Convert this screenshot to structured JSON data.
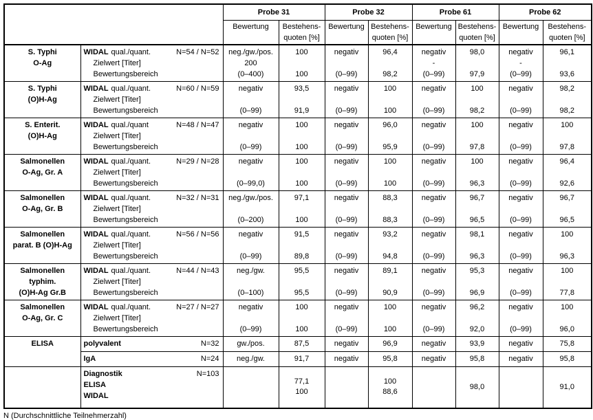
{
  "table": {
    "header": {
      "probes": [
        "Probe 31",
        "Probe 32",
        "Probe 61",
        "Probe 62"
      ],
      "bewertung_label": "Bewertung",
      "quoten_label_line1": "Bestehens-",
      "quoten_label_line2": "quoten [%]"
    },
    "widal_rows": [
      {
        "antigen": [
          "S. Typhi",
          "O-Ag"
        ],
        "test": {
          "bold": "WIDAL",
          "rest": "qual./quant.",
          "n": "N=54 / N=52",
          "line2": "Zielwert [Titer]",
          "line3": "Bewertungsbereich"
        },
        "probes": [
          {
            "bewertung": [
              "neg./gw./pos.",
              "200",
              "(0–400)"
            ],
            "quoten": [
              "100",
              "",
              "100"
            ]
          },
          {
            "bewertung": [
              "negativ",
              "",
              "(0–99)"
            ],
            "quoten": [
              "96,4",
              "",
              "98,2"
            ]
          },
          {
            "bewertung": [
              "negativ",
              "-",
              "(0–99)"
            ],
            "quoten": [
              "98,0",
              "",
              "97,9"
            ]
          },
          {
            "bewertung": [
              "negativ",
              "-",
              "(0–99)"
            ],
            "quoten": [
              "96,1",
              "",
              "93,6"
            ]
          }
        ]
      },
      {
        "antigen": [
          "S. Typhi",
          "(O)H-Ag"
        ],
        "test": {
          "bold": "WIDAL",
          "rest": "qual./quant.",
          "n": "N=60 / N=59",
          "line2": "Zielwert [Titer]",
          "line3": "Bewertungsbereich"
        },
        "probes": [
          {
            "bewertung": [
              "negativ",
              "",
              "(0–99)"
            ],
            "quoten": [
              "93,5",
              "",
              "91,9"
            ]
          },
          {
            "bewertung": [
              "negativ",
              "",
              "(0–99)"
            ],
            "quoten": [
              "100",
              "",
              "100"
            ]
          },
          {
            "bewertung": [
              "negativ",
              "",
              "(0–99)"
            ],
            "quoten": [
              "100",
              "",
              "98,2"
            ]
          },
          {
            "bewertung": [
              "negativ",
              "",
              "(0–99)"
            ],
            "quoten": [
              "98,2",
              "",
              "98,2"
            ]
          }
        ]
      },
      {
        "antigen": [
          "S. Enterit.",
          "(O)H-Ag"
        ],
        "test": {
          "bold": "WIDAL",
          "rest": "qual./quant",
          "n": "N=48 / N=47",
          "line2": "Zielwert [Titer]",
          "line3": "Bewertungsbereich"
        },
        "probes": [
          {
            "bewertung": [
              "negativ",
              "",
              "(0–99)"
            ],
            "quoten": [
              "100",
              "",
              "100"
            ]
          },
          {
            "bewertung": [
              "negativ",
              "",
              "(0–99)"
            ],
            "quoten": [
              "96,0",
              "",
              "95,9"
            ]
          },
          {
            "bewertung": [
              "negativ",
              "",
              "(0–99)"
            ],
            "quoten": [
              "100",
              "",
              "97,8"
            ]
          },
          {
            "bewertung": [
              "negativ",
              "",
              "(0–99)"
            ],
            "quoten": [
              "100",
              "",
              "97,8"
            ]
          }
        ]
      },
      {
        "antigen": [
          "Salmonellen",
          "O-Ag, Gr. A"
        ],
        "test": {
          "bold": "WIDAL",
          "rest": "qual./quant.",
          "n": "N=29 / N=28",
          "line2": "Zielwert [Titer]",
          "line3": "Bewertungsbereich"
        },
        "probes": [
          {
            "bewertung": [
              "negativ",
              "",
              "(0–99,0)"
            ],
            "quoten": [
              "100",
              "",
              "100"
            ]
          },
          {
            "bewertung": [
              "negativ",
              "",
              "(0–99)"
            ],
            "quoten": [
              "100",
              "",
              "100"
            ]
          },
          {
            "bewertung": [
              "negativ",
              "",
              "(0–99)"
            ],
            "quoten": [
              "100",
              "",
              "96,3"
            ]
          },
          {
            "bewertung": [
              "negativ",
              "",
              "(0–99)"
            ],
            "quoten": [
              "96,4",
              "",
              "92,6"
            ]
          }
        ]
      },
      {
        "antigen": [
          "Salmonellen",
          "O-Ag, Gr. B"
        ],
        "test": {
          "bold": "WIDAL",
          "rest": "qual./quant.",
          "n": "N=32 / N=31",
          "line2": "Zielwert [Titer]",
          "line3": "Bewertungsbereich"
        },
        "probes": [
          {
            "bewertung": [
              "neg./gw./pos.",
              "",
              "(0–200)"
            ],
            "quoten": [
              "97,1",
              "",
              "100"
            ]
          },
          {
            "bewertung": [
              "negativ",
              "",
              "(0–99)"
            ],
            "quoten": [
              "88,3",
              "",
              "88,3"
            ]
          },
          {
            "bewertung": [
              "negativ",
              "",
              "(0–99)"
            ],
            "quoten": [
              "96,7",
              "",
              "96,5"
            ]
          },
          {
            "bewertung": [
              "negativ",
              "",
              "(0–99)"
            ],
            "quoten": [
              "96,7",
              "",
              "96,5"
            ]
          }
        ]
      },
      {
        "antigen": [
          "Salmonellen",
          "parat. B (O)H-Ag"
        ],
        "test": {
          "bold": "WIDAL",
          "rest": "qual./quant.",
          "n": "N=56 / N=56",
          "line2": "Zielwert [Titer]",
          "line3": "Bewertungsbereich"
        },
        "probes": [
          {
            "bewertung": [
              "negativ",
              "",
              "(0–99)"
            ],
            "quoten": [
              "91,5",
              "",
              "89,8"
            ]
          },
          {
            "bewertung": [
              "negativ",
              "",
              "(0–99)"
            ],
            "quoten": [
              "93,2",
              "",
              "94,8"
            ]
          },
          {
            "bewertung": [
              "negativ",
              "",
              "(0–99)"
            ],
            "quoten": [
              "98,1",
              "",
              "96,3"
            ]
          },
          {
            "bewertung": [
              "negativ",
              "",
              "(0–99)"
            ],
            "quoten": [
              "100",
              "",
              "96,3"
            ]
          }
        ]
      },
      {
        "antigen": [
          "Salmonellen",
          "typhim.",
          "(O)H-Ag Gr.B"
        ],
        "test": {
          "bold": "WIDAL",
          "rest": "qual./quant.",
          "n": "N=44 / N=43",
          "line2": "Zielwert [Titer]",
          "line3": "Bewertungsbereich"
        },
        "probes": [
          {
            "bewertung": [
              "neg./gw.",
              "",
              "(0–100)"
            ],
            "quoten": [
              "95,5",
              "",
              "95,5"
            ]
          },
          {
            "bewertung": [
              "negativ",
              "",
              "(0–99)"
            ],
            "quoten": [
              "89,1",
              "",
              "90,9"
            ]
          },
          {
            "bewertung": [
              "negativ",
              "",
              "(0–99)"
            ],
            "quoten": [
              "95,3",
              "",
              "96,9"
            ]
          },
          {
            "bewertung": [
              "negativ",
              "",
              "(0–99)"
            ],
            "quoten": [
              "100",
              "",
              "77,8"
            ]
          }
        ]
      },
      {
        "antigen": [
          "Salmonellen",
          "O-Ag, Gr. C"
        ],
        "test": {
          "bold": "WIDAL",
          "rest": "qual./quant.",
          "n": "N=27 / N=27",
          "line2": "Zielwert [Titer]",
          "line3": "Bewertungsbereich"
        },
        "probes": [
          {
            "bewertung": [
              "negativ",
              "",
              "(0–99)"
            ],
            "quoten": [
              "100",
              "",
              "100"
            ]
          },
          {
            "bewertung": [
              "negativ",
              "",
              "(0–99)"
            ],
            "quoten": [
              "100",
              "",
              "100"
            ]
          },
          {
            "bewertung": [
              "negativ",
              "",
              "(0–99)"
            ],
            "quoten": [
              "96,2",
              "",
              "92,0"
            ]
          },
          {
            "bewertung": [
              "negativ",
              "",
              "(0–99)"
            ],
            "quoten": [
              "100",
              "",
              "96,0"
            ]
          }
        ]
      }
    ],
    "elisa_label": "ELISA",
    "elisa_rows": [
      {
        "test": {
          "bold": "polyvalent",
          "n": "N=32"
        },
        "probes": [
          {
            "bewertung": "gw./pos.",
            "quoten": "87,5"
          },
          {
            "bewertung": "negativ",
            "quoten": "96,9"
          },
          {
            "bewertung": "negativ",
            "quoten": "93,9"
          },
          {
            "bewertung": "negativ",
            "quoten": "75,8"
          }
        ]
      },
      {
        "test": {
          "bold": "IgA",
          "n": "N=24"
        },
        "probes": [
          {
            "bewertung": "neg./gw.",
            "quoten": "91,7"
          },
          {
            "bewertung": "negativ",
            "quoten": "95,8"
          },
          {
            "bewertung": "negativ",
            "quoten": "95,8"
          },
          {
            "bewertung": "negativ",
            "quoten": "95,8"
          }
        ]
      }
    ],
    "summary_row": {
      "test": {
        "lines": [
          "Diagnostik",
          "ELISA",
          "WIDAL"
        ],
        "n": "N=103"
      },
      "probes": [
        {
          "bewertung": "",
          "quoten": [
            "77,1",
            "100"
          ]
        },
        {
          "bewertung": "",
          "quoten": [
            "100",
            "88,6"
          ]
        },
        {
          "bewertung": "",
          "quoten": [
            "98,0"
          ]
        },
        {
          "bewertung": "",
          "quoten": [
            "91,0"
          ]
        }
      ]
    }
  },
  "footer_note": "N (Durchschnittliche Teilnehmerzahl)"
}
